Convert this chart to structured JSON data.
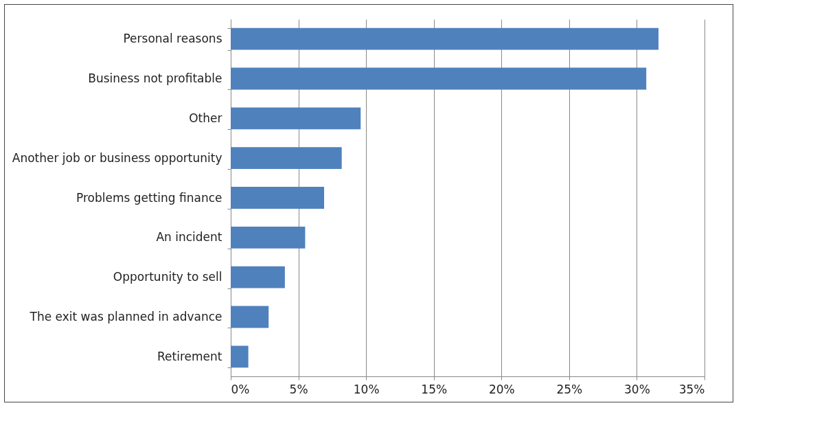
{
  "chart_data": {
    "type": "bar",
    "orientation": "horizontal",
    "categories": [
      "Personal reasons",
      "Business not profitable",
      "Other",
      "Another job or business opportunity",
      "Problems getting finance",
      "An incident",
      "Opportunity to sell",
      "The exit was planned in advance",
      "Retirement"
    ],
    "values": [
      31.6,
      30.7,
      9.6,
      8.2,
      6.9,
      5.5,
      4.0,
      2.8,
      1.3
    ],
    "color": "#4f81bd",
    "xlim": [
      0,
      35
    ],
    "xticks": [
      {
        "value": 0,
        "label": "0%"
      },
      {
        "value": 5,
        "label": "5%"
      },
      {
        "value": 10,
        "label": "10%"
      },
      {
        "value": 15,
        "label": "15%"
      },
      {
        "value": 20,
        "label": "20%"
      },
      {
        "value": 25,
        "label": "25%"
      },
      {
        "value": 30,
        "label": "30%"
      },
      {
        "value": 35,
        "label": "35%"
      }
    ],
    "grid": "x"
  }
}
